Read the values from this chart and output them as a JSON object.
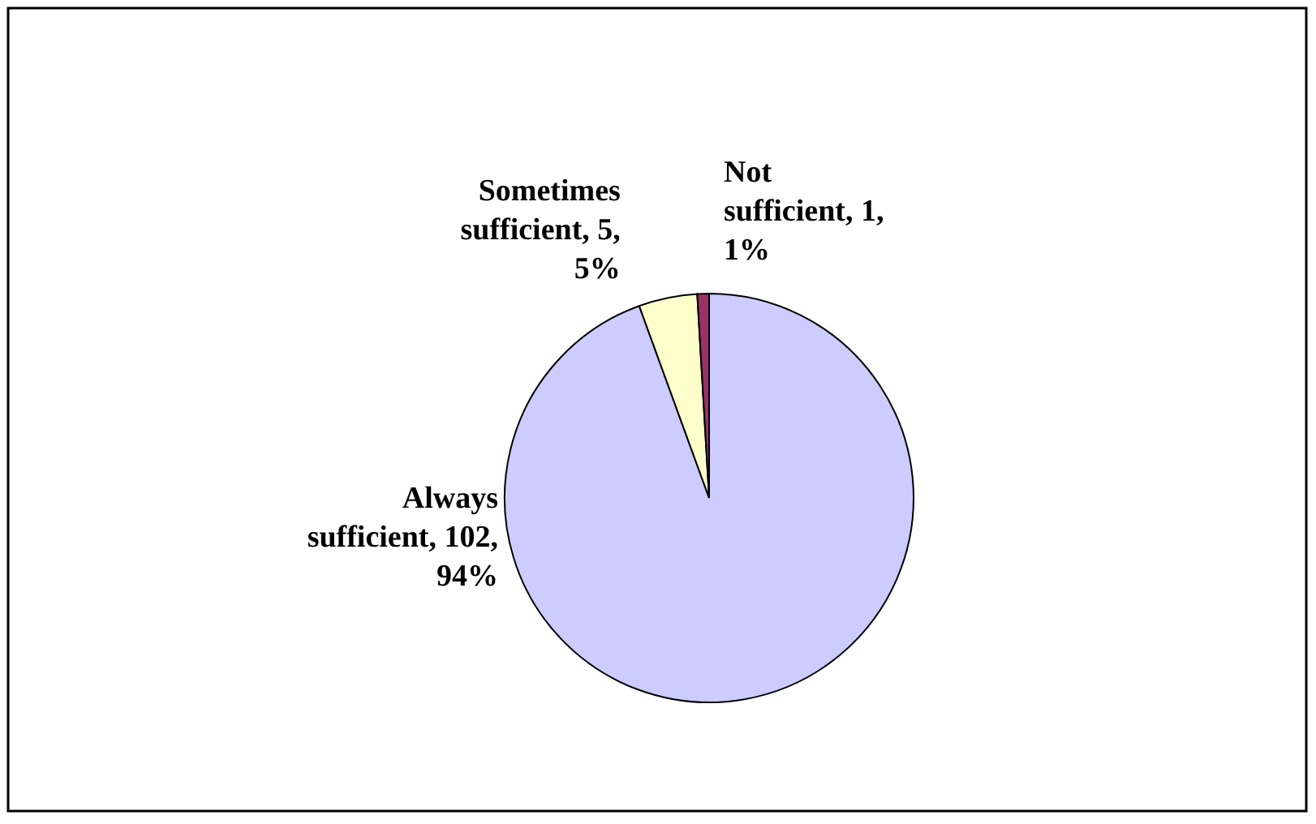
{
  "chart_data": {
    "type": "pie",
    "categories": [
      "Always sufficient",
      "Sometimes sufficient",
      "Not sufficient"
    ],
    "values": [
      102,
      5,
      1
    ],
    "colors": [
      "#ccccff",
      "#ffffcc",
      "#993366"
    ],
    "value_labels": [
      "102, 94%",
      "5, 5%",
      "1, 1%"
    ],
    "legend": false
  }
}
